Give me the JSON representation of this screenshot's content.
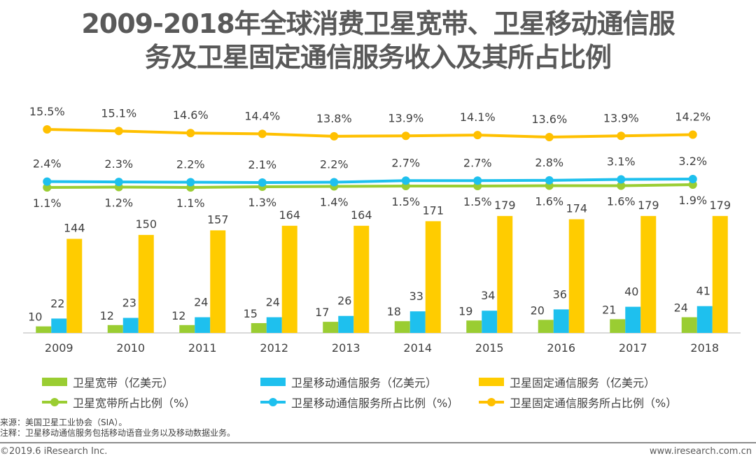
{
  "title_line1": "2009-2018年全球消费卫星宽带、卫星移动通信服",
  "title_line2": "务及卫星固定通信服务收入及其所占比例",
  "chart_data": {
    "type": "bar",
    "title": "2009-2018年全球消费卫星宽带、卫星移动通信服务及卫星固定通信服务收入及其所占比例",
    "categories": [
      "2009",
      "2010",
      "2011",
      "2012",
      "2013",
      "2014",
      "2015",
      "2016",
      "2017",
      "2018"
    ],
    "series": [
      {
        "name": "卫星宽带（亿美元）",
        "type": "bar",
        "color": "#9ACD32",
        "values": [
          10,
          12,
          12,
          15,
          17,
          18,
          19,
          20,
          21,
          24
        ]
      },
      {
        "name": "卫星移动通信服务（亿美元）",
        "type": "bar",
        "color": "#1EC0EE",
        "values": [
          22,
          23,
          24,
          24,
          26,
          33,
          34,
          36,
          40,
          41
        ]
      },
      {
        "name": "卫星固定通信服务（亿美元）",
        "type": "bar",
        "color": "#FFCC00",
        "values": [
          144,
          150,
          157,
          164,
          164,
          171,
          179,
          174,
          179,
          179
        ]
      },
      {
        "name": "卫星宽带所占比例（%）",
        "type": "line",
        "color": "#9ACD32",
        "values": [
          1.1,
          1.2,
          1.1,
          1.3,
          1.4,
          1.5,
          1.5,
          1.6,
          1.6,
          1.9
        ],
        "labels": [
          "1.1%",
          "1.2%",
          "1.1%",
          "1.3%",
          "1.4%",
          "1.5%",
          "1.5%",
          "1.6%",
          "1.6%",
          "1.9%"
        ]
      },
      {
        "name": "卫星移动通信服务所占比例（%）",
        "type": "line",
        "color": "#1EC0EE",
        "values": [
          2.4,
          2.3,
          2.2,
          2.1,
          2.2,
          2.7,
          2.7,
          2.8,
          3.1,
          3.2
        ],
        "labels": [
          "2.4%",
          "2.3%",
          "2.2%",
          "2.1%",
          "2.2%",
          "2.7%",
          "2.7%",
          "2.8%",
          "3.1%",
          "3.2%"
        ]
      },
      {
        "name": "卫星固定通信服务所占比例（%）",
        "type": "line",
        "color": "#FFC000",
        "values": [
          15.5,
          15.1,
          14.6,
          14.4,
          13.8,
          13.9,
          14.1,
          13.6,
          13.9,
          14.2
        ],
        "labels": [
          "15.5%",
          "15.1%",
          "14.6%",
          "14.4%",
          "13.8%",
          "13.9%",
          "14.1%",
          "13.6%",
          "13.9%",
          "14.2%"
        ]
      }
    ],
    "xlabel": "",
    "ylabel": "",
    "bar_ylim": [
      0,
      200
    ],
    "grid": false,
    "legend_position": "bottom"
  },
  "legend": [
    {
      "label": "卫星宽带（亿美元）",
      "kind": "bar",
      "color": "#9ACD32"
    },
    {
      "label": "卫星移动通信服务（亿美元）",
      "kind": "bar",
      "color": "#1EC0EE"
    },
    {
      "label": "卫星固定通信服务（亿美元）",
      "kind": "bar",
      "color": "#FFCC00"
    },
    {
      "label": "卫星宽带所占比例（%）",
      "kind": "line",
      "color": "#9ACD32"
    },
    {
      "label": "卫星移动通信服务所占比例（%）",
      "kind": "line",
      "color": "#1EC0EE"
    },
    {
      "label": "卫星固定通信服务所占比例（%）",
      "kind": "line",
      "color": "#FFC000"
    }
  ],
  "notes": {
    "source": "来源：美国卫星工业协会（SIA）。",
    "note": "注释：卫星移动通信服务包括移动语音业务以及移动数据业务。"
  },
  "footer": {
    "copyright": "©2019.6 iResearch Inc.",
    "website": "www.iresearch.com.cn"
  }
}
